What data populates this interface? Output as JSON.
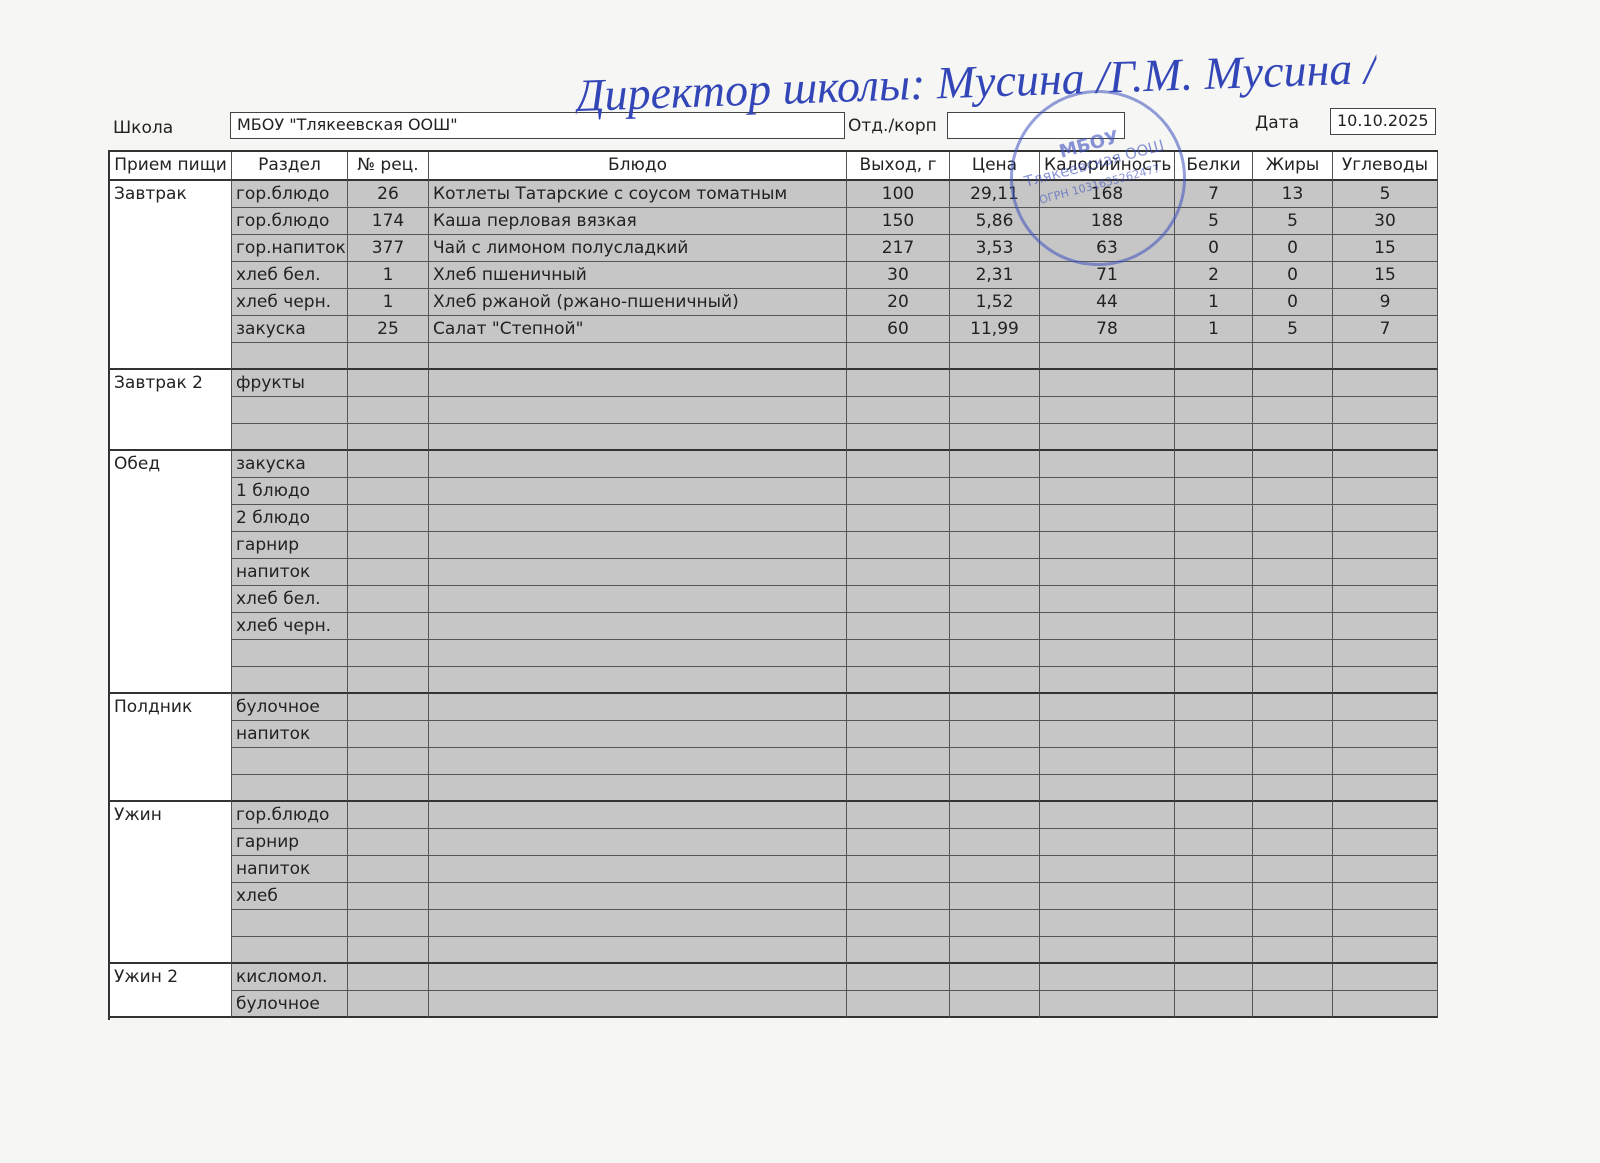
{
  "header": {
    "school_label": "Школа",
    "school": "МБОУ \"Тлякеевская ООШ\"",
    "dept_label": "Отд./корп",
    "date_label": "Дата",
    "date": "10.10.2025"
  },
  "signature": "Директор школы: Мусина /Г.М. Мусина /",
  "stamp": {
    "name": "МБОУ",
    "school": "Тлякеевская ООШ",
    "ogrn": "ОГРН 1031635262477"
  },
  "table": {
    "header": [
      "Прием пищи",
      "Раздел",
      "№ рец.",
      "Блюдо",
      "Выход, г",
      "Цена",
      "Калорийность",
      "Белки",
      "Жиры",
      "Углеводы"
    ],
    "groups": [
      {
        "meal": "Завтрак",
        "rows": [
          {
            "section": "гор.блюдо",
            "recipe": "26",
            "dish": "Котлеты Татарские с соусом томатным",
            "yield": "100",
            "price": "29,11",
            "kcal": "168",
            "protein": "7",
            "fat": "13",
            "carbs": "5"
          },
          {
            "section": "гор.блюдо",
            "recipe": "174",
            "dish": "Каша перловая вязкая",
            "yield": "150",
            "price": "5,86",
            "kcal": "188",
            "protein": "5",
            "fat": "5",
            "carbs": "30"
          },
          {
            "section": "гор.напиток",
            "recipe": "377",
            "dish": "Чай с лимоном полусладкий",
            "yield": "217",
            "price": "3,53",
            "kcal": "63",
            "protein": "0",
            "fat": "0",
            "carbs": "15"
          },
          {
            "section": "хлеб бел.",
            "recipe": "1",
            "dish": "Хлеб пшеничный",
            "yield": "30",
            "price": "2,31",
            "kcal": "71",
            "protein": "2",
            "fat": "0",
            "carbs": "15"
          },
          {
            "section": "хлеб черн.",
            "recipe": "1",
            "dish": "Хлеб ржаной (ржано-пшеничный)",
            "yield": "20",
            "price": "1,52",
            "kcal": "44",
            "protein": "1",
            "fat": "0",
            "carbs": "9"
          },
          {
            "section": "закуска",
            "recipe": "25",
            "dish": "Салат \"Степной\"",
            "yield": "60",
            "price": "11,99",
            "kcal": "78",
            "protein": "1",
            "fat": "5",
            "carbs": "7"
          },
          {}
        ]
      },
      {
        "meal": "Завтрак 2",
        "rows": [
          {
            "section": "фрукты"
          },
          {},
          {}
        ]
      },
      {
        "meal": "Обед",
        "rows": [
          {
            "section": "закуска"
          },
          {
            "section": "1 блюдо"
          },
          {
            "section": "2 блюдо"
          },
          {
            "section": "гарнир"
          },
          {
            "section": "напиток"
          },
          {
            "section": "хлеб бел."
          },
          {
            "section": "хлеб черн."
          },
          {},
          {}
        ]
      },
      {
        "meal": "Полдник",
        "rows": [
          {
            "section": "булочное"
          },
          {
            "section": "напиток"
          },
          {},
          {}
        ]
      },
      {
        "meal": "Ужин",
        "rows": [
          {
            "section": "гор.блюдо"
          },
          {
            "section": "гарнир"
          },
          {
            "section": "напиток"
          },
          {
            "section": "хлеб"
          },
          {},
          {}
        ]
      },
      {
        "meal": "Ужин 2",
        "rows": [
          {
            "section": "кисломол."
          },
          {
            "section": "булочное"
          }
        ]
      }
    ]
  }
}
